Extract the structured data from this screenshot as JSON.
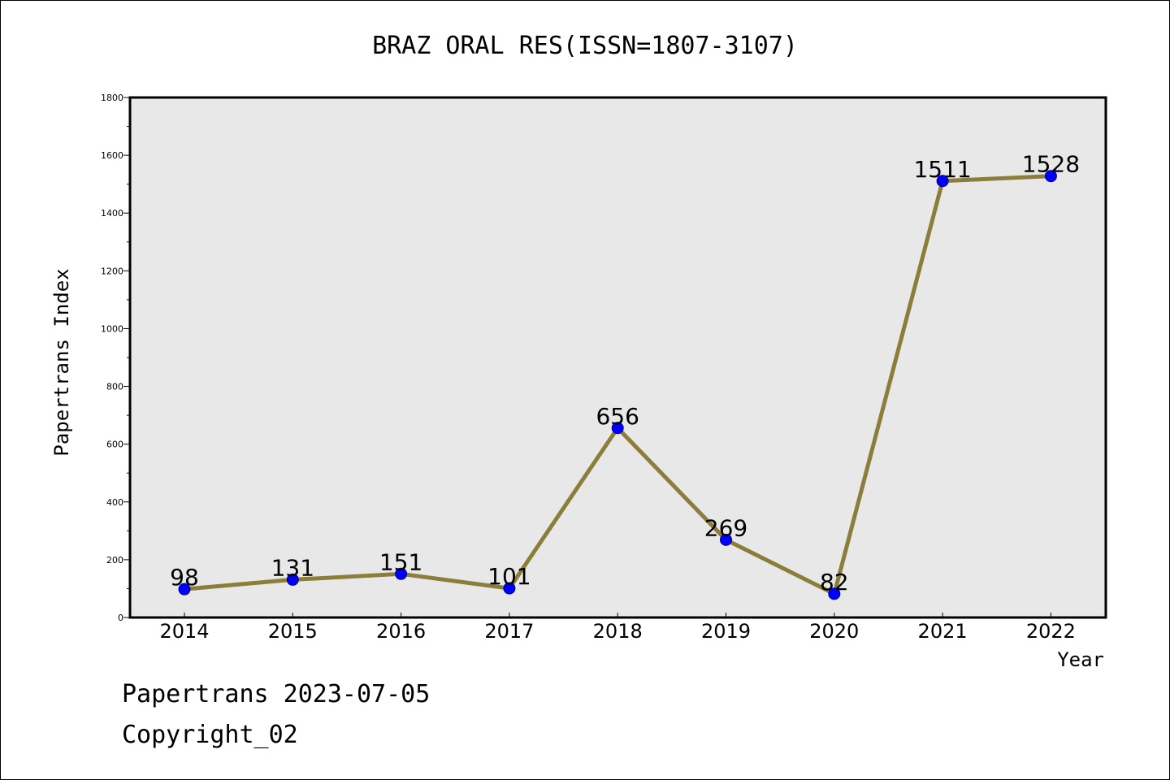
{
  "chart_data": {
    "type": "line",
    "title": "BRAZ ORAL RES(ISSN=1807-3107)",
    "xlabel": "Year",
    "ylabel": "Papertrans Index",
    "categories": [
      "2014",
      "2015",
      "2016",
      "2017",
      "2018",
      "2019",
      "2020",
      "2021",
      "2022"
    ],
    "series": [
      {
        "values": [
          98,
          131,
          151,
          101,
          656,
          269,
          82,
          1511,
          1528
        ]
      }
    ],
    "data_labels": [
      "98",
      "131",
      "151",
      "101",
      "656",
      "269",
      "82",
      "1511",
      "1528"
    ],
    "ylim": [
      0,
      1800
    ],
    "yticks": [
      "0",
      "200",
      "400",
      "600",
      "800",
      "1000",
      "1200",
      "1400",
      "1600",
      "1800"
    ],
    "grid": false,
    "legend": "none",
    "colors": {
      "line": "#8b7d3a",
      "marker": "#0000ff",
      "plot_bg": "#e8e8e8"
    }
  },
  "footer": {
    "line1": "Papertrans 2023-07-05",
    "line2": "Copyright_02"
  }
}
